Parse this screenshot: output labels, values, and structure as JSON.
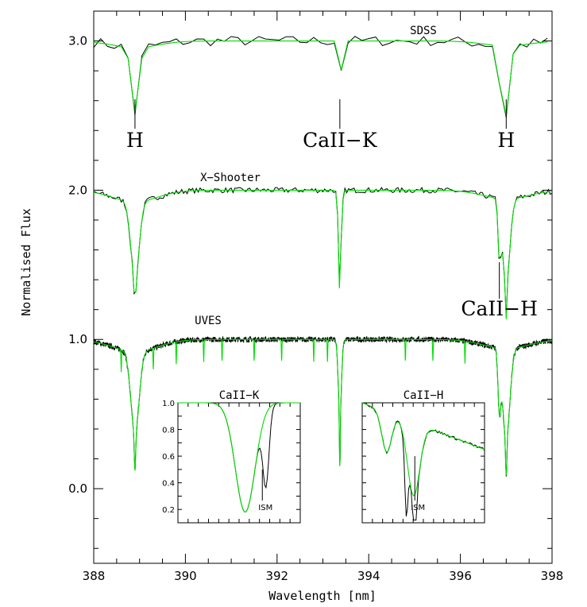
{
  "chart_data": {
    "type": "line",
    "xlabel": "Wavelength [nm]",
    "ylabel": "Normalised Flux",
    "xlim": [
      388,
      398
    ],
    "ylim": [
      -0.5,
      3.2
    ],
    "x_ticks": [
      388,
      390,
      392,
      394,
      396,
      398
    ],
    "y_ticks": [
      "0.0",
      "1.0",
      "2.0",
      "3.0"
    ],
    "y_tick_values": [
      0,
      1,
      2,
      3
    ],
    "colors": {
      "observed": "#000000",
      "model": "#00dd00"
    },
    "spectra": [
      {
        "label": "SDSS",
        "offset": 2.0,
        "depth_scale": 0.55,
        "noise": 0.035,
        "step": 0.15
      },
      {
        "label": "X−Shooter",
        "offset": 1.0,
        "depth_scale": 0.95,
        "noise": 0.018,
        "step": 0.04
      },
      {
        "label": "UVES",
        "offset": 0.0,
        "depth_scale": 1.0,
        "noise": 0.018,
        "step": 0.006
      }
    ],
    "line_markers": [
      {
        "label": "H",
        "x": 388.9,
        "panel": "SDSS"
      },
      {
        "label": "CaII−K",
        "x": 393.37,
        "panel": "SDSS"
      },
      {
        "label": "H",
        "x": 397.0,
        "panel": "SDSS"
      },
      {
        "label": "CaII−H",
        "x": 396.85,
        "panel": "X-Shooter"
      }
    ],
    "insets": [
      {
        "title": "CaII−K",
        "ylim": [
          0.1,
          1.0
        ],
        "y_ticks": [
          "0.2",
          "0.4",
          "0.6",
          "0.8",
          "1.0"
        ],
        "y_tick_values": [
          0.2,
          0.4,
          0.6,
          0.8,
          1.0
        ],
        "annotation": "ISM"
      },
      {
        "title": "CaII−H",
        "ylim": [
          0.1,
          1.0
        ],
        "annotation": "ISM"
      }
    ]
  }
}
